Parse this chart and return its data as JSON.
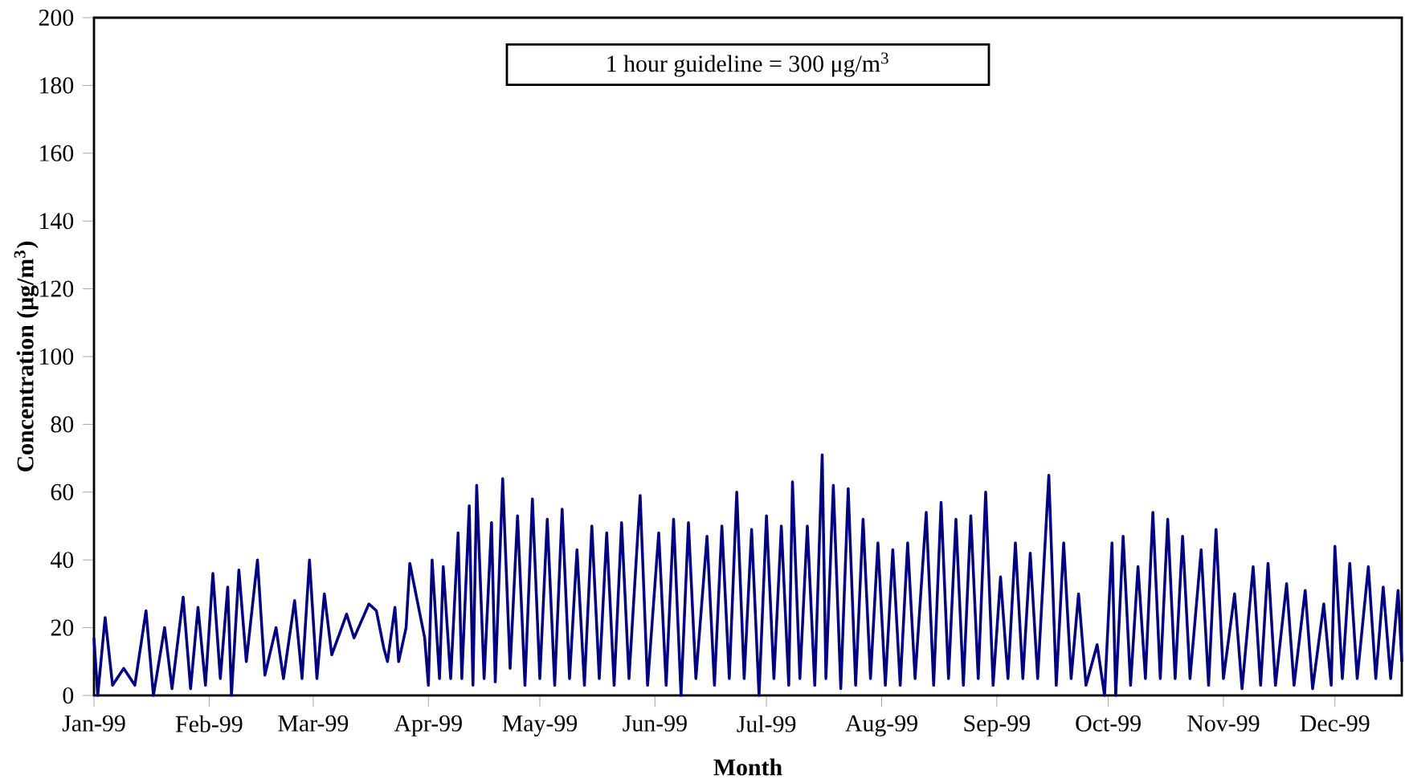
{
  "chart_data": {
    "type": "line",
    "xlabel": "Month",
    "ylabel": "Concentration (μg/m$^{3}$)",
    "annotations": [
      "1 hour guideline = 300 μg/m$^{3}$"
    ],
    "x": [
      "1999-01-01",
      "1999-01-02",
      "1999-01-04",
      "1999-01-06",
      "1999-01-09",
      "1999-01-12",
      "1999-01-15",
      "1999-01-17",
      "1999-01-20",
      "1999-01-22",
      "1999-01-25",
      "1999-01-27",
      "1999-01-29",
      "1999-01-31",
      "1999-02-02",
      "1999-02-04",
      "1999-02-06",
      "1999-02-07",
      "1999-02-09",
      "1999-02-11",
      "1999-02-14",
      "1999-02-16",
      "1999-02-19",
      "1999-02-21",
      "1999-02-24",
      "1999-02-26",
      "1999-02-28",
      "1999-03-02",
      "1999-03-04",
      "1999-03-06",
      "1999-03-08",
      "1999-03-10",
      "1999-03-12",
      "1999-03-14",
      "1999-03-16",
      "1999-03-18",
      "1999-03-20",
      "1999-03-21",
      "1999-03-23",
      "1999-03-24",
      "1999-03-26",
      "1999-03-27",
      "1999-03-29",
      "1999-03-31",
      "1999-04-01",
      "1999-04-02",
      "1999-04-04",
      "1999-04-05",
      "1999-04-07",
      "1999-04-09",
      "1999-04-10",
      "1999-04-12",
      "1999-04-13",
      "1999-04-14",
      "1999-04-16",
      "1999-04-18",
      "1999-04-19",
      "1999-04-21",
      "1999-04-23",
      "1999-04-25",
      "1999-04-27",
      "1999-04-29",
      "1999-05-01",
      "1999-05-03",
      "1999-05-05",
      "1999-05-07",
      "1999-05-09",
      "1999-05-11",
      "1999-05-13",
      "1999-05-15",
      "1999-05-17",
      "1999-05-19",
      "1999-05-21",
      "1999-05-23",
      "1999-05-25",
      "1999-05-28",
      "1999-05-30",
      "1999-06-02",
      "1999-06-04",
      "1999-06-06",
      "1999-06-08",
      "1999-06-10",
      "1999-06-12",
      "1999-06-15",
      "1999-06-17",
      "1999-06-19",
      "1999-06-21",
      "1999-06-23",
      "1999-06-25",
      "1999-06-27",
      "1999-06-29",
      "1999-07-01",
      "1999-07-03",
      "1999-07-05",
      "1999-07-07",
      "1999-07-08",
      "1999-07-10",
      "1999-07-12",
      "1999-07-14",
      "1999-07-16",
      "1999-07-17",
      "1999-07-19",
      "1999-07-21",
      "1999-07-23",
      "1999-07-25",
      "1999-07-27",
      "1999-07-29",
      "1999-07-31",
      "1999-08-02",
      "1999-08-04",
      "1999-08-06",
      "1999-08-08",
      "1999-08-10",
      "1999-08-13",
      "1999-08-15",
      "1999-08-17",
      "1999-08-19",
      "1999-08-21",
      "1999-08-23",
      "1999-08-25",
      "1999-08-27",
      "1999-08-29",
      "1999-08-31",
      "1999-09-02",
      "1999-09-04",
      "1999-09-06",
      "1999-09-08",
      "1999-09-10",
      "1999-09-12",
      "1999-09-15",
      "1999-09-17",
      "1999-09-19",
      "1999-09-21",
      "1999-09-23",
      "1999-09-25",
      "1999-09-28",
      "1999-09-30",
      "1999-10-02",
      "1999-10-03",
      "1999-10-05",
      "1999-10-07",
      "1999-10-09",
      "1999-10-11",
      "1999-10-13",
      "1999-10-15",
      "1999-10-17",
      "1999-10-19",
      "1999-10-21",
      "1999-10-23",
      "1999-10-26",
      "1999-10-28",
      "1999-10-30",
      "1999-11-01",
      "1999-11-04",
      "1999-11-06",
      "1999-11-09",
      "1999-11-11",
      "1999-11-13",
      "1999-11-15",
      "1999-11-18",
      "1999-11-20",
      "1999-11-23",
      "1999-11-25",
      "1999-11-28",
      "1999-11-30",
      "1999-12-01",
      "1999-12-03",
      "1999-12-05",
      "1999-12-07",
      "1999-12-10",
      "1999-12-12",
      "1999-12-14",
      "1999-12-16",
      "1999-12-18",
      "1999-12-19"
    ],
    "series": [
      {
        "color": "#000080",
        "values": [
          17,
          0,
          23,
          3,
          8,
          3,
          25,
          0,
          20,
          2,
          29,
          2,
          26,
          3,
          36,
          5,
          32,
          0,
          37,
          10,
          40,
          6,
          20,
          5,
          28,
          5,
          40,
          5,
          30,
          12,
          18,
          24,
          17,
          22,
          27,
          25,
          14,
          10,
          26,
          10,
          20,
          39,
          28,
          17,
          3,
          40,
          5,
          38,
          5,
          48,
          5,
          56,
          3,
          62,
          5,
          51,
          4,
          64,
          8,
          53,
          3,
          58,
          5,
          52,
          3,
          55,
          5,
          43,
          3,
          50,
          5,
          48,
          3,
          51,
          5,
          59,
          3,
          48,
          3,
          52,
          0,
          51,
          5,
          47,
          3,
          50,
          5,
          60,
          5,
          49,
          0,
          53,
          5,
          50,
          3,
          63,
          5,
          50,
          3,
          71,
          5,
          62,
          2,
          61,
          3,
          52,
          5,
          45,
          3,
          43,
          3,
          45,
          5,
          54,
          3,
          57,
          5,
          52,
          3,
          53,
          5,
          60,
          3,
          35,
          5,
          45,
          5,
          42,
          5,
          65,
          3,
          45,
          5,
          30,
          3,
          15,
          0,
          45,
          0,
          47,
          3,
          38,
          5,
          54,
          5,
          52,
          5,
          47,
          5,
          43,
          3,
          49,
          5,
          30,
          2,
          38,
          3,
          39,
          3,
          33,
          3,
          31,
          2,
          27,
          3,
          44,
          5,
          39,
          5,
          38,
          5,
          32,
          5,
          31,
          10
        ]
      }
    ],
    "xlim": [
      "1999-01-01",
      "1999-12-19"
    ],
    "xticks": [
      {
        "value": "1999-01-01",
        "label": "Jan-99"
      },
      {
        "value": "1999-02-01",
        "label": "Feb-99"
      },
      {
        "value": "1999-03-01",
        "label": "Mar-99"
      },
      {
        "value": "1999-04-01",
        "label": "Apr-99"
      },
      {
        "value": "1999-05-01",
        "label": "May-99"
      },
      {
        "value": "1999-06-01",
        "label": "Jun-99"
      },
      {
        "value": "1999-07-01",
        "label": "Jul-99"
      },
      {
        "value": "1999-08-01",
        "label": "Aug-99"
      },
      {
        "value": "1999-09-01",
        "label": "Sep-99"
      },
      {
        "value": "1999-10-01",
        "label": "Oct-99"
      },
      {
        "value": "1999-11-01",
        "label": "Nov-99"
      },
      {
        "value": "1999-12-01",
        "label": "Dec-99"
      }
    ],
    "ylim": [
      0,
      200
    ],
    "yticks": [
      0,
      20,
      40,
      60,
      80,
      100,
      120,
      140,
      160,
      180,
      200
    ],
    "marker": "none",
    "line_style": "solid"
  }
}
